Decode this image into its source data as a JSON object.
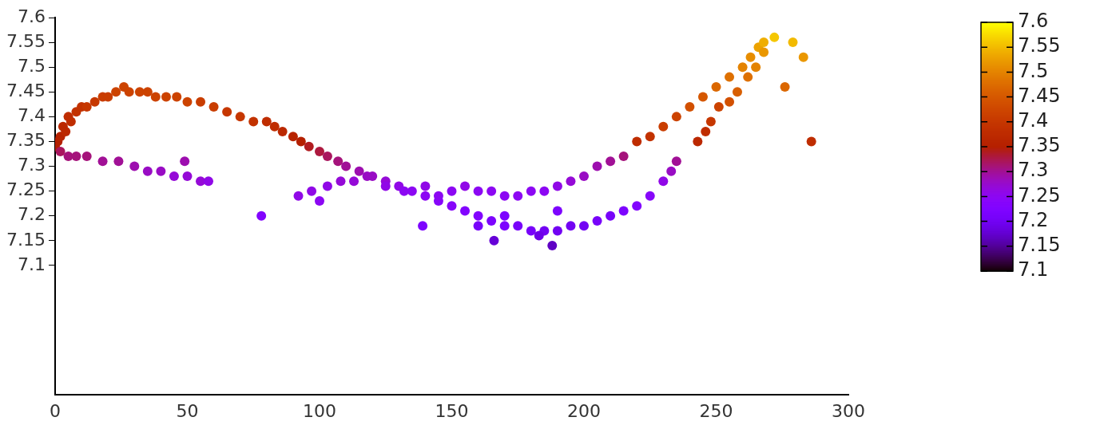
{
  "chart_data": {
    "type": "scatter",
    "marker": "circle",
    "x": [
      0,
      1,
      2,
      3,
      4,
      5,
      6,
      8,
      10,
      12,
      15,
      18,
      20,
      23,
      26,
      28,
      32,
      35,
      38,
      42,
      46,
      50,
      55,
      60,
      65,
      70,
      75,
      80,
      83,
      86,
      90,
      93,
      96,
      100,
      103,
      107,
      110,
      115,
      120,
      125,
      130,
      135,
      140,
      145,
      150,
      155,
      160,
      165,
      170,
      175,
      180,
      185,
      190,
      195,
      200,
      205,
      210,
      215,
      220,
      225,
      230,
      233,
      235,
      2,
      5,
      8,
      12,
      18,
      24,
      30,
      35,
      40,
      45,
      50,
      55,
      58,
      49,
      78,
      92,
      97,
      100,
      103,
      108,
      113,
      118,
      125,
      132,
      140,
      145,
      150,
      155,
      160,
      165,
      170,
      175,
      180,
      185,
      190,
      195,
      200,
      205,
      210,
      215,
      139,
      160,
      166,
      183,
      188,
      190,
      170,
      220,
      225,
      230,
      235,
      240,
      245,
      250,
      255,
      260,
      263,
      266,
      268,
      272,
      279,
      283,
      276,
      286,
      243,
      246,
      248,
      251,
      255,
      258,
      262,
      265,
      268
    ],
    "values": [
      7.34,
      7.35,
      7.36,
      7.38,
      7.37,
      7.4,
      7.39,
      7.41,
      7.42,
      7.42,
      7.43,
      7.44,
      7.44,
      7.45,
      7.46,
      7.45,
      7.45,
      7.45,
      7.44,
      7.44,
      7.44,
      7.43,
      7.43,
      7.42,
      7.41,
      7.4,
      7.39,
      7.39,
      7.38,
      7.37,
      7.36,
      7.35,
      7.34,
      7.33,
      7.32,
      7.31,
      7.3,
      7.29,
      7.28,
      7.27,
      7.26,
      7.25,
      7.24,
      7.23,
      7.22,
      7.21,
      7.2,
      7.19,
      7.18,
      7.18,
      7.17,
      7.17,
      7.17,
      7.18,
      7.18,
      7.19,
      7.2,
      7.21,
      7.22,
      7.24,
      7.27,
      7.29,
      7.31,
      7.33,
      7.32,
      7.32,
      7.32,
      7.31,
      7.31,
      7.3,
      7.29,
      7.29,
      7.28,
      7.28,
      7.27,
      7.27,
      7.31,
      7.2,
      7.24,
      7.25,
      7.23,
      7.26,
      7.27,
      7.27,
      7.28,
      7.26,
      7.25,
      7.26,
      7.24,
      7.25,
      7.26,
      7.25,
      7.25,
      7.24,
      7.24,
      7.25,
      7.25,
      7.26,
      7.27,
      7.28,
      7.3,
      7.31,
      7.32,
      7.18,
      7.18,
      7.15,
      7.16,
      7.14,
      7.21,
      7.2,
      7.35,
      7.36,
      7.38,
      7.4,
      7.42,
      7.44,
      7.46,
      7.48,
      7.5,
      7.52,
      7.54,
      7.55,
      7.56,
      7.55,
      7.52,
      7.46,
      7.35,
      7.35,
      7.37,
      7.39,
      7.42,
      7.43,
      7.45,
      7.48,
      7.5,
      7.53
    ],
    "cvalues": [
      7.35,
      7.35,
      7.36,
      7.37,
      7.37,
      7.38,
      7.38,
      7.39,
      7.39,
      7.4,
      7.4,
      7.41,
      7.41,
      7.42,
      7.42,
      7.42,
      7.42,
      7.42,
      7.42,
      7.42,
      7.42,
      7.42,
      7.41,
      7.41,
      7.4,
      7.4,
      7.39,
      7.38,
      7.38,
      7.37,
      7.36,
      7.35,
      7.34,
      7.33,
      7.32,
      7.31,
      7.3,
      7.29,
      7.28,
      7.27,
      7.26,
      7.25,
      7.25,
      7.24,
      7.24,
      7.23,
      7.23,
      7.22,
      7.22,
      7.21,
      7.21,
      7.2,
      7.2,
      7.2,
      7.2,
      7.21,
      7.21,
      7.22,
      7.23,
      7.24,
      7.26,
      7.28,
      7.3,
      7.32,
      7.31,
      7.31,
      7.31,
      7.3,
      7.3,
      7.29,
      7.28,
      7.28,
      7.27,
      7.27,
      7.27,
      7.26,
      7.29,
      7.23,
      7.26,
      7.26,
      7.25,
      7.26,
      7.27,
      7.27,
      7.28,
      7.26,
      7.25,
      7.26,
      7.25,
      7.25,
      7.26,
      7.25,
      7.25,
      7.25,
      7.25,
      7.25,
      7.25,
      7.26,
      7.27,
      7.28,
      7.29,
      7.3,
      7.31,
      7.22,
      7.21,
      7.18,
      7.19,
      7.17,
      7.22,
      7.22,
      7.38,
      7.39,
      7.41,
      7.42,
      7.44,
      7.45,
      7.47,
      7.48,
      7.5,
      7.51,
      7.53,
      7.54,
      7.56,
      7.55,
      7.52,
      7.47,
      7.38,
      7.37,
      7.38,
      7.4,
      7.42,
      7.44,
      7.46,
      7.48,
      7.5,
      7.52
    ],
    "xlim": [
      0,
      300
    ],
    "xticks": [
      0,
      50,
      100,
      150,
      200,
      250,
      300
    ],
    "ylim": [
      6.84,
      7.6
    ],
    "yticks": [
      7.1,
      7.15,
      7.2,
      7.25,
      7.3,
      7.35,
      7.4,
      7.45,
      7.5,
      7.55,
      7.6
    ],
    "clim": [
      7.1,
      7.6
    ],
    "cticks": [
      7.1,
      7.15,
      7.2,
      7.25,
      7.3,
      7.35,
      7.4,
      7.45,
      7.5,
      7.55,
      7.6
    ]
  }
}
